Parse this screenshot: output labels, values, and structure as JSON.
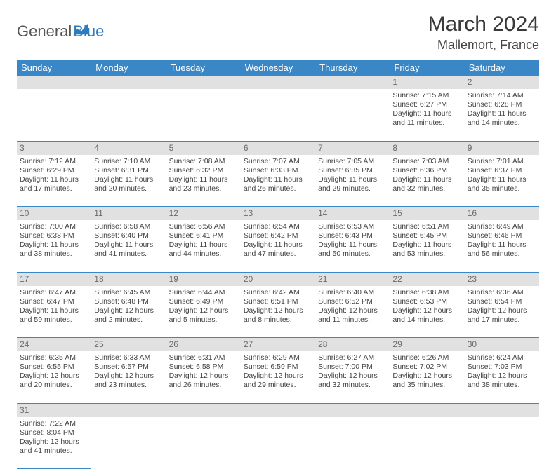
{
  "logo": {
    "text1": "General",
    "text2": "Blue"
  },
  "title": "March 2024",
  "location": "Mallemort, France",
  "colors": {
    "header_bg": "#3a87c7",
    "header_text": "#ffffff",
    "daynum_bg": "#e1e1e1",
    "daynum_text": "#6a6a6a",
    "cell_text": "#444444",
    "border": "#3a87c7",
    "logo_blue": "#2b7bbf"
  },
  "weekdays": [
    "Sunday",
    "Monday",
    "Tuesday",
    "Wednesday",
    "Thursday",
    "Friday",
    "Saturday"
  ],
  "weeks": [
    [
      null,
      null,
      null,
      null,
      null,
      {
        "n": "1",
        "sr": "7:15 AM",
        "ss": "6:27 PM",
        "dl": "11 hours and 11 minutes."
      },
      {
        "n": "2",
        "sr": "7:14 AM",
        "ss": "6:28 PM",
        "dl": "11 hours and 14 minutes."
      }
    ],
    [
      {
        "n": "3",
        "sr": "7:12 AM",
        "ss": "6:29 PM",
        "dl": "11 hours and 17 minutes."
      },
      {
        "n": "4",
        "sr": "7:10 AM",
        "ss": "6:31 PM",
        "dl": "11 hours and 20 minutes."
      },
      {
        "n": "5",
        "sr": "7:08 AM",
        "ss": "6:32 PM",
        "dl": "11 hours and 23 minutes."
      },
      {
        "n": "6",
        "sr": "7:07 AM",
        "ss": "6:33 PM",
        "dl": "11 hours and 26 minutes."
      },
      {
        "n": "7",
        "sr": "7:05 AM",
        "ss": "6:35 PM",
        "dl": "11 hours and 29 minutes."
      },
      {
        "n": "8",
        "sr": "7:03 AM",
        "ss": "6:36 PM",
        "dl": "11 hours and 32 minutes."
      },
      {
        "n": "9",
        "sr": "7:01 AM",
        "ss": "6:37 PM",
        "dl": "11 hours and 35 minutes."
      }
    ],
    [
      {
        "n": "10",
        "sr": "7:00 AM",
        "ss": "6:38 PM",
        "dl": "11 hours and 38 minutes."
      },
      {
        "n": "11",
        "sr": "6:58 AM",
        "ss": "6:40 PM",
        "dl": "11 hours and 41 minutes."
      },
      {
        "n": "12",
        "sr": "6:56 AM",
        "ss": "6:41 PM",
        "dl": "11 hours and 44 minutes."
      },
      {
        "n": "13",
        "sr": "6:54 AM",
        "ss": "6:42 PM",
        "dl": "11 hours and 47 minutes."
      },
      {
        "n": "14",
        "sr": "6:53 AM",
        "ss": "6:43 PM",
        "dl": "11 hours and 50 minutes."
      },
      {
        "n": "15",
        "sr": "6:51 AM",
        "ss": "6:45 PM",
        "dl": "11 hours and 53 minutes."
      },
      {
        "n": "16",
        "sr": "6:49 AM",
        "ss": "6:46 PM",
        "dl": "11 hours and 56 minutes."
      }
    ],
    [
      {
        "n": "17",
        "sr": "6:47 AM",
        "ss": "6:47 PM",
        "dl": "11 hours and 59 minutes."
      },
      {
        "n": "18",
        "sr": "6:45 AM",
        "ss": "6:48 PM",
        "dl": "12 hours and 2 minutes."
      },
      {
        "n": "19",
        "sr": "6:44 AM",
        "ss": "6:49 PM",
        "dl": "12 hours and 5 minutes."
      },
      {
        "n": "20",
        "sr": "6:42 AM",
        "ss": "6:51 PM",
        "dl": "12 hours and 8 minutes."
      },
      {
        "n": "21",
        "sr": "6:40 AM",
        "ss": "6:52 PM",
        "dl": "12 hours and 11 minutes."
      },
      {
        "n": "22",
        "sr": "6:38 AM",
        "ss": "6:53 PM",
        "dl": "12 hours and 14 minutes."
      },
      {
        "n": "23",
        "sr": "6:36 AM",
        "ss": "6:54 PM",
        "dl": "12 hours and 17 minutes."
      }
    ],
    [
      {
        "n": "24",
        "sr": "6:35 AM",
        "ss": "6:55 PM",
        "dl": "12 hours and 20 minutes."
      },
      {
        "n": "25",
        "sr": "6:33 AM",
        "ss": "6:57 PM",
        "dl": "12 hours and 23 minutes."
      },
      {
        "n": "26",
        "sr": "6:31 AM",
        "ss": "6:58 PM",
        "dl": "12 hours and 26 minutes."
      },
      {
        "n": "27",
        "sr": "6:29 AM",
        "ss": "6:59 PM",
        "dl": "12 hours and 29 minutes."
      },
      {
        "n": "28",
        "sr": "6:27 AM",
        "ss": "7:00 PM",
        "dl": "12 hours and 32 minutes."
      },
      {
        "n": "29",
        "sr": "6:26 AM",
        "ss": "7:02 PM",
        "dl": "12 hours and 35 minutes."
      },
      {
        "n": "30",
        "sr": "6:24 AM",
        "ss": "7:03 PM",
        "dl": "12 hours and 38 minutes."
      }
    ],
    [
      {
        "n": "31",
        "sr": "7:22 AM",
        "ss": "8:04 PM",
        "dl": "12 hours and 41 minutes."
      },
      null,
      null,
      null,
      null,
      null,
      null
    ]
  ],
  "labels": {
    "sunrise": "Sunrise: ",
    "sunset": "Sunset: ",
    "daylight": "Daylight: "
  }
}
